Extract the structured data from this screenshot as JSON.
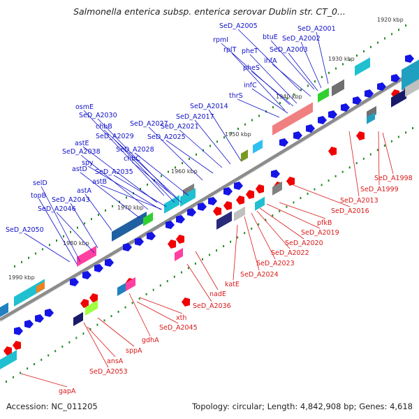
{
  "title": "Salmonella enterica subsp. enterica serovar Dublin str. CT_0...",
  "accession": "Accession: NC_011205",
  "summary": "Topology: circular; Length: 4,842,908 bp; Genes: 4,618",
  "colors": {
    "backbone": "#8c8c8c",
    "plus_label": "#1010c8",
    "minus_label": "#d81818",
    "plus_gene": "#1414e6",
    "minus_gene": "#f00000",
    "tick": "#228b22"
  },
  "scale_labels": [
    "1920 kbp",
    "1930 kbp",
    "1940 kbp",
    "1950 kbp",
    "1960 kbp",
    "1970 kbp",
    "1980 kbp",
    "1990 kbp"
  ],
  "plus_strand_labels": [
    "SeD_A2005",
    "btuE",
    "SeD_A2001",
    "rpmI",
    "SeD_A2002",
    "rplT",
    "pheT",
    "SeD_A2003",
    "ihfA",
    "pheS",
    "infC",
    "thrS",
    "SeD_A2014",
    "SeD_A2017",
    "osmE",
    "SeD_A2030",
    "SeD_A2021",
    "chbB",
    "SeD_A2027",
    "SeD_A2029",
    "SeD_A2025",
    "astE",
    "SeD_A2038",
    "SeD_A2028",
    "spy",
    "chbC",
    "astD",
    "SeD_A2035",
    "selD",
    "astB",
    "topB",
    "astA",
    "SeD_A2043",
    "SeD_A2046",
    "SeD_A2050"
  ],
  "minus_strand_labels": [
    "SeD_A1998",
    "SeD_A1999",
    "SeD_A2013",
    "SeD_A2016",
    "pfkB",
    "SeD_A2019",
    "SeD_A2020",
    "SeD_A2022",
    "SeD_A2023",
    "SeD_A2024",
    "katE",
    "nadE",
    "SeD_A2036",
    "xth",
    "SeD_A2045",
    "gdhA",
    "sppA",
    "ansA",
    "SeD_A2053",
    "gapA"
  ]
}
